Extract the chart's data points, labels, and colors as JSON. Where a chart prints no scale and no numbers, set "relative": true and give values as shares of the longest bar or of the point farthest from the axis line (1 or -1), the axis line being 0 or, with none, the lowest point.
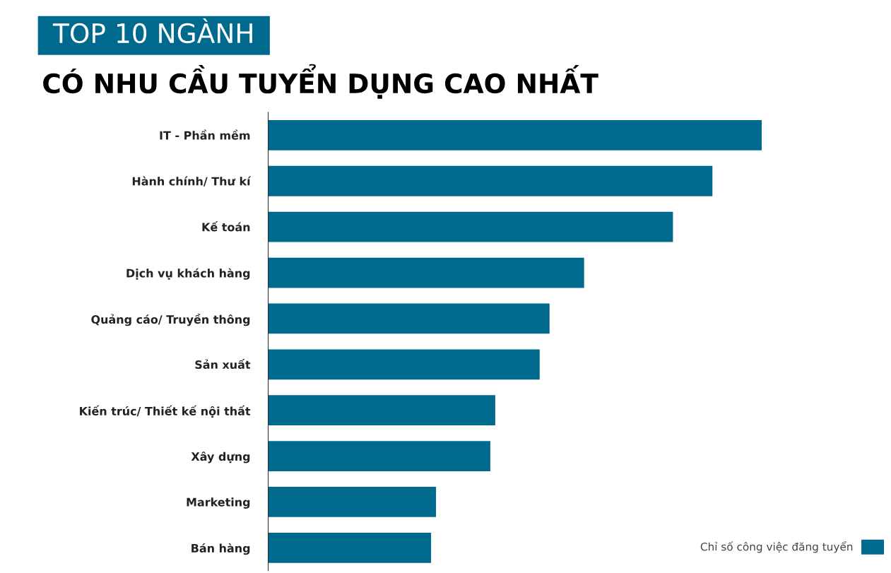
{
  "chart_data": {
    "type": "bar",
    "orientation": "horizontal",
    "relative": true,
    "title": "TOP 10 NGÀNH",
    "subtitle": "CÓ NHU CẦU TUYỂN DỤNG CAO NHẤT",
    "categories": [
      "IT - Phần mềm",
      "Hành chính/ Thư kí",
      "Kế toán",
      "Dịch vụ khách hàng",
      "Quảng cáo/ Truyền thông",
      "Sản xuất",
      "Kiến trúc/ Thiết kế nội thất",
      "Xây dựng",
      "Marketing",
      "Bán hàng"
    ],
    "series": [
      {
        "name": "Chỉ số công việc đăng tuyển",
        "color": "#006a8e",
        "values": [
          1,
          0.9,
          0.82,
          0.64,
          0.57,
          0.55,
          0.46,
          0.45,
          0.34,
          0.33
        ]
      }
    ],
    "legend": "bottom right",
    "grid": false
  }
}
